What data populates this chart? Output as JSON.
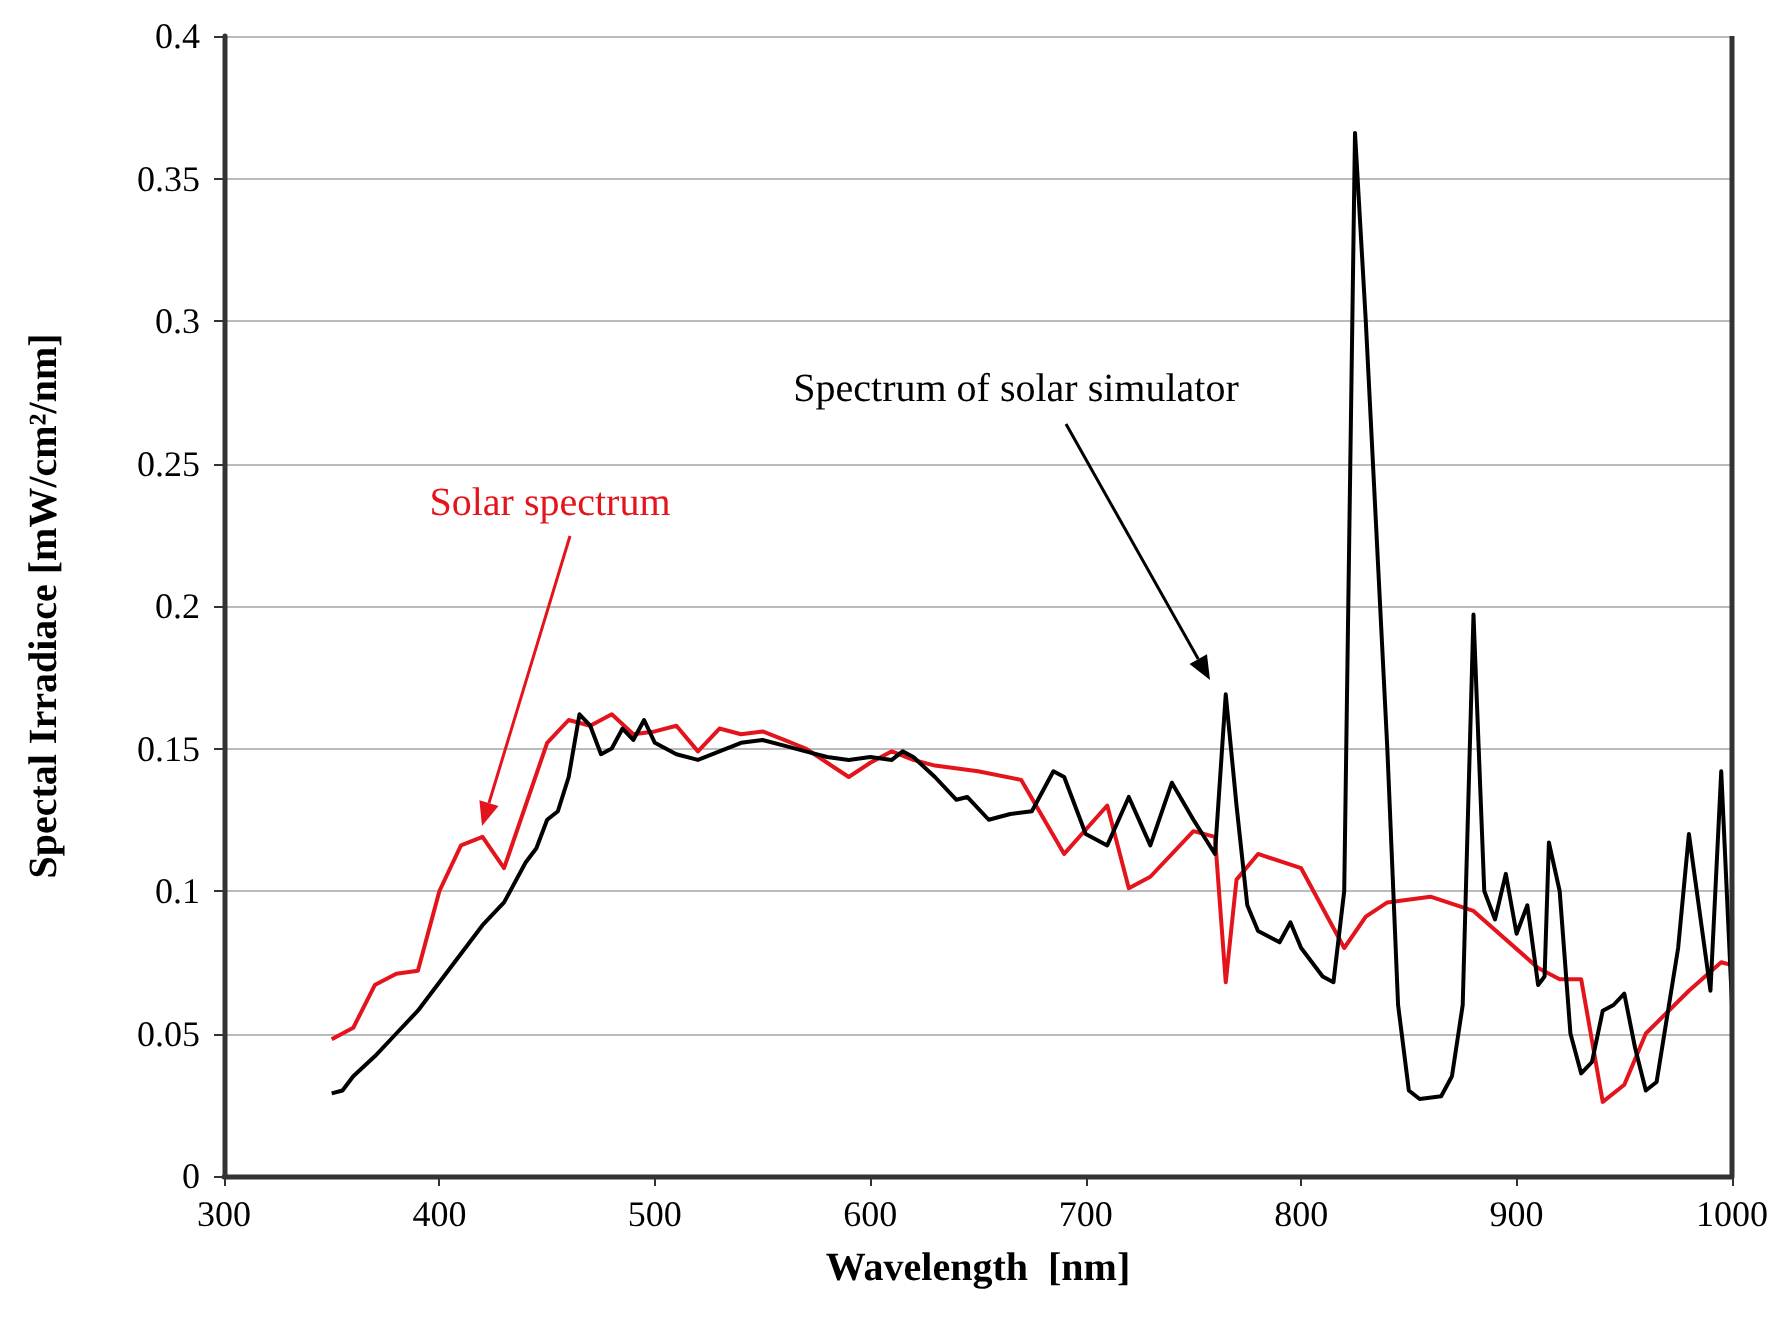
{
  "chart_data": {
    "type": "line",
    "xlabel": "Wavelength  [nm]",
    "ylabel": "Spectal Irradiace [mW/cm²/nm]",
    "xlim": [
      300,
      1000
    ],
    "xticks": [
      300,
      400,
      500,
      600,
      700,
      800,
      900,
      1000
    ],
    "ylim": [
      0,
      0.4
    ],
    "yticks": [
      0,
      0.05,
      0.1,
      0.15,
      0.2,
      0.25,
      0.3,
      0.35,
      0.4
    ],
    "grid": "y",
    "marker": "none",
    "line_style": "solid",
    "annotations": [
      "Solar spectrum",
      "Spectrum of solar simulator"
    ],
    "series": [
      {
        "color": "#e3141b",
        "x": [
          350,
          360,
          370,
          380,
          390,
          400,
          410,
          420,
          430,
          450,
          460,
          470,
          480,
          490,
          500,
          510,
          520,
          530,
          540,
          550,
          560,
          570,
          580,
          590,
          600,
          610,
          620,
          630,
          650,
          670,
          690,
          710,
          720,
          730,
          750,
          760,
          765,
          770,
          780,
          800,
          820,
          830,
          840,
          860,
          880,
          910,
          920,
          930,
          940,
          950,
          960,
          980,
          995,
          1000
        ],
        "values": [
          0.048,
          0.052,
          0.067,
          0.071,
          0.072,
          0.1,
          0.116,
          0.119,
          0.108,
          0.152,
          0.16,
          0.158,
          0.162,
          0.155,
          0.156,
          0.158,
          0.149,
          0.157,
          0.155,
          0.156,
          0.153,
          0.15,
          0.145,
          0.14,
          0.145,
          0.149,
          0.146,
          0.144,
          0.142,
          0.139,
          0.113,
          0.13,
          0.101,
          0.105,
          0.121,
          0.119,
          0.068,
          0.104,
          0.113,
          0.108,
          0.08,
          0.091,
          0.096,
          0.098,
          0.093,
          0.073,
          0.069,
          0.069,
          0.026,
          0.032,
          0.05,
          0.065,
          0.075,
          0.074
        ]
      },
      {
        "color": "#000000",
        "x": [
          350,
          355,
          360,
          370,
          380,
          390,
          400,
          410,
          420,
          430,
          440,
          445,
          450,
          455,
          460,
          465,
          470,
          475,
          480,
          485,
          490,
          495,
          500,
          510,
          520,
          530,
          540,
          550,
          560,
          570,
          580,
          590,
          600,
          610,
          615,
          620,
          630,
          640,
          645,
          655,
          665,
          675,
          685,
          690,
          700,
          710,
          720,
          730,
          740,
          750,
          760,
          765,
          770,
          775,
          780,
          790,
          795,
          800,
          810,
          815,
          820,
          825,
          830,
          840,
          845,
          850,
          855,
          865,
          870,
          875,
          880,
          885,
          890,
          895,
          900,
          905,
          910,
          913,
          915,
          920,
          925,
          930,
          935,
          940,
          945,
          950,
          955,
          960,
          965,
          975,
          980,
          990,
          995,
          1000
        ],
        "values": [
          0.029,
          0.03,
          0.035,
          0.042,
          0.05,
          0.058,
          0.068,
          0.078,
          0.088,
          0.096,
          0.11,
          0.115,
          0.125,
          0.128,
          0.14,
          0.162,
          0.158,
          0.148,
          0.15,
          0.157,
          0.153,
          0.16,
          0.152,
          0.148,
          0.146,
          0.149,
          0.152,
          0.153,
          0.151,
          0.149,
          0.147,
          0.146,
          0.147,
          0.146,
          0.149,
          0.147,
          0.14,
          0.132,
          0.133,
          0.125,
          0.127,
          0.128,
          0.142,
          0.14,
          0.12,
          0.116,
          0.133,
          0.116,
          0.138,
          0.125,
          0.113,
          0.169,
          0.13,
          0.095,
          0.086,
          0.082,
          0.089,
          0.08,
          0.07,
          0.068,
          0.1,
          0.366,
          0.3,
          0.15,
          0.06,
          0.03,
          0.027,
          0.028,
          0.035,
          0.06,
          0.197,
          0.1,
          0.09,
          0.106,
          0.085,
          0.095,
          0.067,
          0.07,
          0.117,
          0.1,
          0.05,
          0.036,
          0.04,
          0.058,
          0.06,
          0.064,
          0.045,
          0.03,
          0.033,
          0.08,
          0.12,
          0.065,
          0.142,
          0.06
        ]
      }
    ]
  }
}
